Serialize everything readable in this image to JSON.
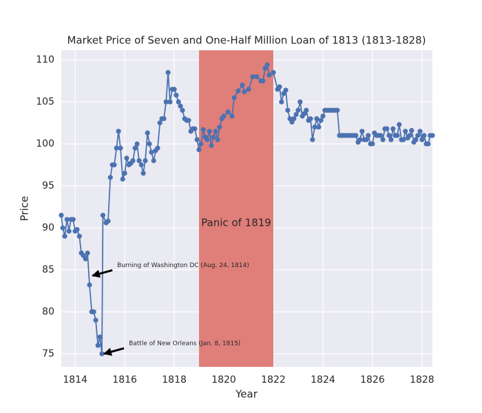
{
  "chart_data": {
    "type": "line",
    "title": "Market Price of Seven and One-Half Million Loan of 1813 (1813-1828)",
    "x_label": "Year",
    "y_label": "Price",
    "color": "#4c72b0",
    "grid": true,
    "xlim": [
      1813.44,
      1828.42
    ],
    "ylim": [
      73.44,
      111.15
    ],
    "xticks": [
      1814,
      1816,
      1818,
      1820,
      1822,
      1824,
      1826,
      1828
    ],
    "yticks": [
      75,
      80,
      85,
      90,
      95,
      100,
      105,
      110
    ],
    "x": [
      1813.44,
      1813.5,
      1813.58,
      1813.67,
      1813.75,
      1813.83,
      1813.92,
      1814.0,
      1814.08,
      1814.17,
      1814.25,
      1814.33,
      1814.42,
      1814.5,
      1814.58,
      1814.67,
      1814.75,
      1814.83,
      1814.92,
      1815.0,
      1815.08,
      1815.12,
      1815.25,
      1815.33,
      1815.42,
      1815.5,
      1815.58,
      1815.67,
      1815.75,
      1815.83,
      1815.92,
      1816.0,
      1816.08,
      1816.17,
      1816.25,
      1816.33,
      1816.42,
      1816.5,
      1816.58,
      1816.67,
      1816.75,
      1816.83,
      1816.92,
      1817.0,
      1817.08,
      1817.17,
      1817.25,
      1817.33,
      1817.42,
      1817.5,
      1817.58,
      1817.67,
      1817.75,
      1817.83,
      1817.92,
      1818.0,
      1818.08,
      1818.17,
      1818.25,
      1818.33,
      1818.42,
      1818.5,
      1818.58,
      1818.67,
      1818.75,
      1818.83,
      1818.92,
      1819.0,
      1819.08,
      1819.17,
      1819.25,
      1819.33,
      1819.42,
      1819.5,
      1819.58,
      1819.67,
      1819.75,
      1819.83,
      1819.92,
      1820.0,
      1820.17,
      1820.33,
      1820.42,
      1820.58,
      1820.75,
      1820.83,
      1821.0,
      1821.17,
      1821.33,
      1821.5,
      1821.58,
      1821.67,
      1821.75,
      1821.83,
      1822.0,
      1822.17,
      1822.25,
      1822.33,
      1822.42,
      1822.5,
      1822.58,
      1822.67,
      1822.75,
      1822.83,
      1822.92,
      1823.0,
      1823.08,
      1823.17,
      1823.25,
      1823.33,
      1823.42,
      1823.5,
      1823.58,
      1823.67,
      1823.75,
      1823.83,
      1823.92,
      1824.0,
      1824.08,
      1824.17,
      1824.25,
      1824.33,
      1824.42,
      1824.5,
      1824.58,
      1824.67,
      1824.75,
      1824.83,
      1824.92,
      1825.0,
      1825.08,
      1825.17,
      1825.25,
      1825.33,
      1825.42,
      1825.5,
      1825.58,
      1825.67,
      1825.75,
      1825.83,
      1825.92,
      1826.0,
      1826.08,
      1826.17,
      1826.25,
      1826.33,
      1826.42,
      1826.5,
      1826.58,
      1826.67,
      1826.75,
      1826.83,
      1826.92,
      1827.0,
      1827.08,
      1827.17,
      1827.25,
      1827.33,
      1827.42,
      1827.5,
      1827.58,
      1827.67,
      1827.75,
      1827.83,
      1827.92,
      1828.0,
      1828.08,
      1828.17,
      1828.25,
      1828.33,
      1828.42
    ],
    "values": [
      91.5,
      90,
      89,
      91,
      89.6,
      91,
      91,
      89.6,
      89.8,
      89,
      87,
      86.7,
      86.3,
      87,
      83.2,
      80,
      80,
      79,
      76,
      77,
      75,
      91.5,
      90.6,
      90.8,
      96,
      97.5,
      97.5,
      99.5,
      101.5,
      99.5,
      95.8,
      96.5,
      98.3,
      97.5,
      97.7,
      98,
      99.5,
      100,
      98,
      97.5,
      96.5,
      98,
      101.3,
      100,
      99,
      98,
      99.2,
      99.5,
      102.5,
      103,
      103,
      105,
      108.5,
      105,
      106.5,
      106.5,
      105.8,
      105,
      104.5,
      104,
      103,
      102.8,
      102.8,
      101.5,
      101.8,
      101.8,
      100.5,
      99.3,
      100,
      101.7,
      100.8,
      100.5,
      101.5,
      99.8,
      100.8,
      101.5,
      100.5,
      102,
      103,
      103.3,
      103.8,
      103.3,
      105.5,
      106.3,
      107,
      106.2,
      106.5,
      108,
      108,
      107.5,
      107.5,
      109,
      109.4,
      108.2,
      108.5,
      106.5,
      106.8,
      105,
      106,
      106.4,
      104,
      103,
      102.6,
      103,
      103.5,
      104,
      105,
      103.3,
      103.6,
      104,
      102.8,
      103,
      100.5,
      102,
      103,
      102,
      102.8,
      103.3,
      104,
      104,
      104,
      104,
      104,
      104,
      104,
      101,
      101,
      101,
      101,
      101,
      101,
      101,
      101,
      101,
      100.2,
      100.5,
      101.5,
      100.5,
      100.5,
      101,
      100,
      100,
      101.3,
      101,
      101,
      101,
      100.5,
      101.8,
      101.8,
      101,
      100.5,
      101.8,
      101,
      101,
      102.3,
      100.5,
      100.5,
      101.5,
      100.7,
      101,
      101.6,
      100.2,
      100.5,
      101,
      101.5,
      100.5,
      101,
      100,
      100,
      101,
      101
    ],
    "span": {
      "label": "Panic of 1819",
      "x0": 1819,
      "x1": 1822,
      "color": "#e07f7a"
    },
    "annotations": [
      {
        "text": "Burning of Washington DC (Aug. 24, 1814)",
        "x": 1814.64,
        "y": 84.3
      },
      {
        "text": "Battle of New Orleans (Jan. 8, 1815)",
        "x": 1815.11,
        "y": 75
      }
    ]
  }
}
